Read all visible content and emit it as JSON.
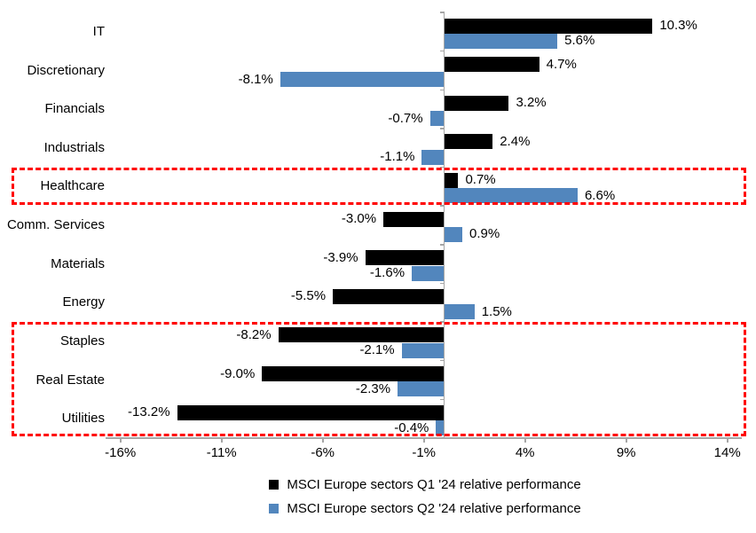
{
  "chart_data": {
    "type": "bar",
    "orientation": "horizontal",
    "title": "",
    "categories": [
      "IT",
      "Discretionary",
      "Financials",
      "Industrials",
      "Healthcare",
      "Comm. Services",
      "Materials",
      "Energy",
      "Staples",
      "Real Estate",
      "Utilities"
    ],
    "series": [
      {
        "name": "MSCI Europe sectors Q1 '24 relative performance",
        "color": "#000000",
        "values": [
          10.3,
          4.7,
          3.2,
          2.4,
          0.7,
          -3.0,
          -3.9,
          -5.5,
          -8.2,
          -9.0,
          -13.2
        ],
        "value_labels": [
          "10.3%",
          "4.7%",
          "3.2%",
          "2.4%",
          "0.7%",
          "-3.0%",
          "-3.9%",
          "-5.5%",
          "-8.2%",
          "-9.0%",
          "-13.2%"
        ]
      },
      {
        "name": "MSCI Europe sectors Q2 '24 relative performance",
        "color": "#5286BD",
        "values": [
          5.6,
          -8.1,
          -0.7,
          -1.1,
          6.6,
          0.9,
          -1.6,
          1.5,
          -2.1,
          -2.3,
          -0.4
        ],
        "value_labels": [
          "5.6%",
          "-8.1%",
          "-0.7%",
          "-1.1%",
          "6.6%",
          "0.9%",
          "-1.6%",
          "1.5%",
          "-2.1%",
          "-2.3%",
          "-0.4%"
        ]
      }
    ],
    "x_axis": {
      "tick_labels": [
        "-16%",
        "-11%",
        "-6%",
        "-1%",
        "4%",
        "9%",
        "14%"
      ],
      "tick_values": [
        -16,
        -11,
        -6,
        -1,
        4,
        9,
        14
      ],
      "range": [
        -16.7,
        14.7
      ]
    },
    "axis_color": "#A6A6A6",
    "grid": false,
    "legend_position": "bottom",
    "highlight_boxes": [
      {
        "from_category": "Healthcare",
        "to_category": "Healthcare",
        "color": "#FF0000",
        "style": "dashed"
      },
      {
        "from_category": "Staples",
        "to_category": "Utilities",
        "color": "#FF0000",
        "style": "dashed"
      }
    ]
  }
}
